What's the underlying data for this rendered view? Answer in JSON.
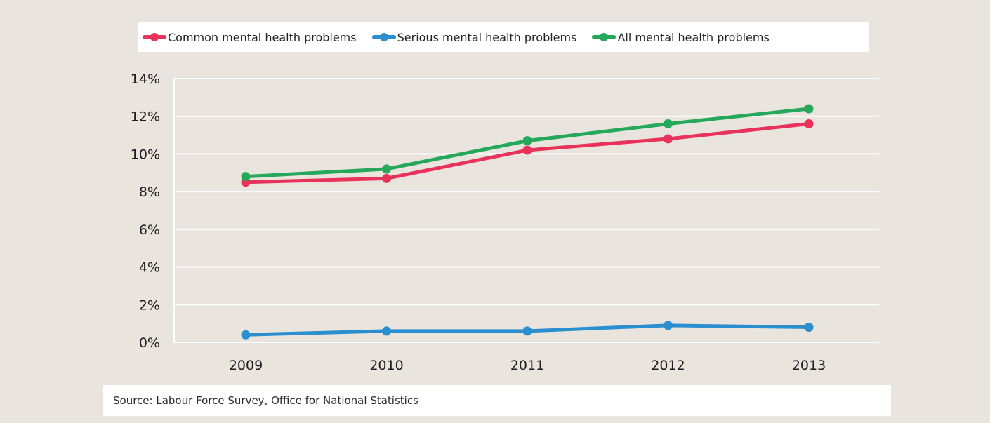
{
  "chart_data": {
    "type": "line",
    "x": [
      "2009",
      "2010",
      "2011",
      "2012",
      "2013"
    ],
    "series": [
      {
        "name": "Common mental health problems",
        "color": "#e8325a",
        "values": [
          8.5,
          8.7,
          10.2,
          10.8,
          11.6
        ]
      },
      {
        "name": "Serious mental health problems",
        "color": "#2b8fcf",
        "values": [
          0.4,
          0.6,
          0.6,
          0.9,
          0.8
        ]
      },
      {
        "name": "All mental health problems",
        "color": "#25a85a",
        "values": [
          8.8,
          9.2,
          10.7,
          11.6,
          12.4
        ]
      }
    ],
    "ylim": [
      0,
      14
    ],
    "yticks": [
      "0%",
      "2%",
      "4%",
      "6%",
      "8%",
      "10%",
      "12%",
      "14%"
    ],
    "grid": true,
    "legend_position": "top",
    "source": "Source: Labour Force Survey, Office for National Statistics"
  }
}
